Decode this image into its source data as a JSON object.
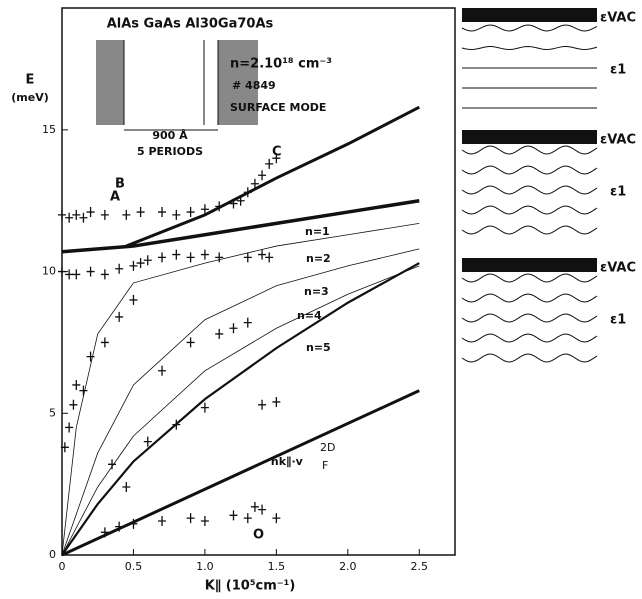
{
  "chart_data": {
    "type": "scatter",
    "y_label": "E",
    "y_unit": "(meV)",
    "x_label": "K∥ (10⁵cm⁻¹)",
    "xlim": [
      0,
      2.75
    ],
    "ylim": [
      0,
      19.3
    ],
    "xticks": [
      0,
      0.5,
      {
        "value": 1,
        "label": "1.0"
      },
      1.5,
      {
        "value": 2,
        "label": "2.0"
      },
      2.5
    ],
    "yticks": [
      0,
      5,
      10,
      15
    ],
    "points": {
      "color": "#111",
      "x": [
        0,
        0.05,
        0.1,
        0.15,
        0.2,
        0.3,
        0.45,
        0.55,
        0.7,
        0.8,
        0.9,
        1.0,
        1.1,
        1.2,
        1.25,
        1.3,
        1.35,
        1.4,
        1.45,
        1.5,
        0,
        0.05,
        0.1,
        0.2,
        0.3,
        0.4,
        0.5,
        0.55,
        0.6,
        0.7,
        0.8,
        0.9,
        1.0,
        1.1,
        1.3,
        1.4,
        1.45,
        0.02,
        0.05,
        0.08,
        0.1,
        0.15,
        0.2,
        0.3,
        0.35,
        0.4,
        0.45,
        0.5,
        0.6,
        0.7,
        0.8,
        0.9,
        1.0,
        1.1,
        1.2,
        1.3,
        1.4,
        1.5,
        0.3,
        0.4,
        0.5,
        0.7,
        0.9,
        1.0,
        1.2,
        1.3,
        1.35,
        1.4,
        1.5
      ],
      "y": [
        12,
        11.9,
        12,
        11.9,
        12.1,
        12,
        12,
        12.1,
        12.1,
        12,
        12.1,
        12.2,
        12.3,
        12.4,
        12.5,
        12.8,
        13.1,
        13.4,
        13.8,
        14.0,
        10,
        9.9,
        9.9,
        10,
        9.9,
        10.1,
        10.2,
        10.3,
        10.4,
        10.5,
        10.6,
        10.5,
        10.6,
        10.5,
        10.5,
        10.6,
        10.5,
        3.8,
        4.5,
        5.3,
        6.0,
        5.8,
        7.0,
        7.5,
        3.2,
        8.4,
        2.4,
        9.0,
        4.0,
        6.5,
        4.6,
        7.5,
        5.2,
        7.8,
        8.0,
        8.2,
        5.3,
        5.4,
        0.8,
        1.0,
        1.1,
        1.2,
        1.3,
        1.2,
        1.4,
        1.3,
        1.7,
        1.6,
        1.3
      ]
    },
    "curves": [
      {
        "name": "SURFACE MODE",
        "x": [
          0.45,
          1,
          1.5,
          2,
          2.5
        ],
        "y": [
          10.9,
          12.0,
          13.3,
          14.5,
          15.8
        ],
        "width": 3
      },
      {
        "name": "n=1",
        "x": [
          0,
          0.5,
          1,
          1.5,
          2,
          2.5
        ],
        "y": [
          10.7,
          10.9,
          11.3,
          11.7,
          12.1,
          12.5
        ],
        "width": 3.5
      },
      {
        "name": "n=2",
        "x": [
          0,
          0.1,
          0.25,
          0.5,
          1,
          1.5,
          2,
          2.5
        ],
        "y": [
          0,
          4.5,
          7.8,
          9.6,
          10.3,
          10.9,
          11.3,
          11.7
        ],
        "width": 0.8
      },
      {
        "name": "n=3",
        "x": [
          0,
          0.25,
          0.5,
          1,
          1.5,
          2,
          2.5
        ],
        "y": [
          0,
          3.6,
          6.0,
          8.3,
          9.5,
          10.2,
          10.8
        ],
        "width": 0.8
      },
      {
        "name": "n=4",
        "x": [
          0,
          0.25,
          0.5,
          1,
          1.5,
          2,
          2.5
        ],
        "y": [
          0,
          2.4,
          4.2,
          6.5,
          8.0,
          9.2,
          10.2
        ],
        "width": 0.8
      },
      {
        "name": "n=5",
        "x": [
          0,
          0.25,
          0.5,
          1,
          1.5,
          2,
          2.5
        ],
        "y": [
          0,
          1.8,
          3.3,
          5.5,
          7.3,
          8.9,
          10.3
        ],
        "width": 2.2
      },
      {
        "name": "ħk∥·v",
        "x": [
          0,
          2.5
        ],
        "y": [
          0,
          5.8
        ],
        "width": 3
      }
    ],
    "vF_sup": "2D",
    "vF_sub": "F",
    "labels": [
      "A",
      "B",
      "C",
      "O"
    ]
  },
  "inset": {
    "materials": "AlAs GaAs Al30Ga70As",
    "density": "n=2.10¹⁸ cm⁻³",
    "sample": "# 4849",
    "period": "900 Å",
    "periods": "5 PERIODS"
  },
  "panel": {
    "eps_vac": [
      "εVAC",
      "εVAC",
      "εVAC"
    ],
    "eps_1": [
      "ε1",
      "ε1",
      "ε1"
    ]
  }
}
